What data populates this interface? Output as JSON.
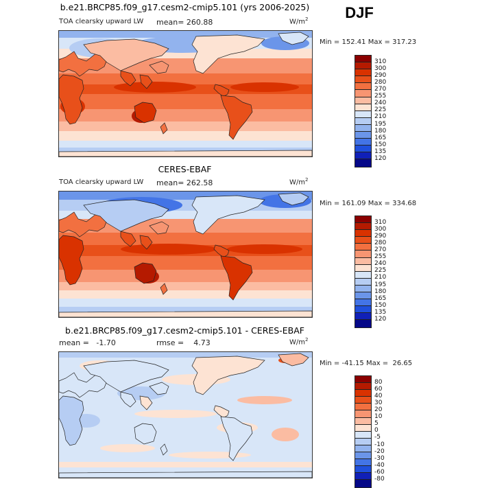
{
  "season": "DJF",
  "units_base": "W/m",
  "units_exp": "2",
  "panels": [
    {
      "title": "b.e21.BRCP85.f09_g17.cesm2-cmip5.101 (yrs 2006-2025)",
      "variable": "TOA clearsky upward LW",
      "mean_label": "mean=",
      "mean_value": "260.88",
      "min_label": "Min =",
      "min_value": "152.41",
      "max_label": "Max =",
      "max_value": "317.23",
      "colorbar_levels": [
        "310",
        "300",
        "290",
        "280",
        "270",
        "255",
        "240",
        "225",
        "210",
        "195",
        "180",
        "165",
        "150",
        "135",
        "120"
      ]
    },
    {
      "title": "CERES-EBAF",
      "variable": "TOA clearsky upward LW",
      "mean_label": "mean=",
      "mean_value": "262.58",
      "min_label": "Min =",
      "min_value": "161.09",
      "max_label": "Max =",
      "max_value": "334.68",
      "colorbar_levels": [
        "310",
        "300",
        "290",
        "280",
        "270",
        "255",
        "240",
        "225",
        "210",
        "195",
        "180",
        "165",
        "150",
        "135",
        "120"
      ]
    },
    {
      "title": "b.e21.BRCP85.f09_g17.cesm2-cmip5.101 - CERES-EBAF",
      "mean_label": "mean =",
      "mean_value": "-1.70",
      "rmse_label": "rmse =",
      "rmse_value": "4.73",
      "min_label": "Min =",
      "min_value": "-41.15",
      "max_label": "Max =",
      "max_value": "26.65",
      "colorbar_levels": [
        "80",
        "60",
        "40",
        "30",
        "20",
        "10",
        "5",
        "0",
        "-5",
        "-10",
        "-20",
        "-30",
        "-40",
        "-60",
        "-80"
      ]
    }
  ],
  "colorbar_colors": [
    "#8b0000",
    "#b51a00",
    "#d93200",
    "#e8501a",
    "#f27040",
    "#f79572",
    "#fbbca2",
    "#fde3d3",
    "#d8e6f8",
    "#b6cdf3",
    "#92b3ee",
    "#6b95e9",
    "#4374e6",
    "#1f4fdc",
    "#1020b8",
    "#050888"
  ]
}
